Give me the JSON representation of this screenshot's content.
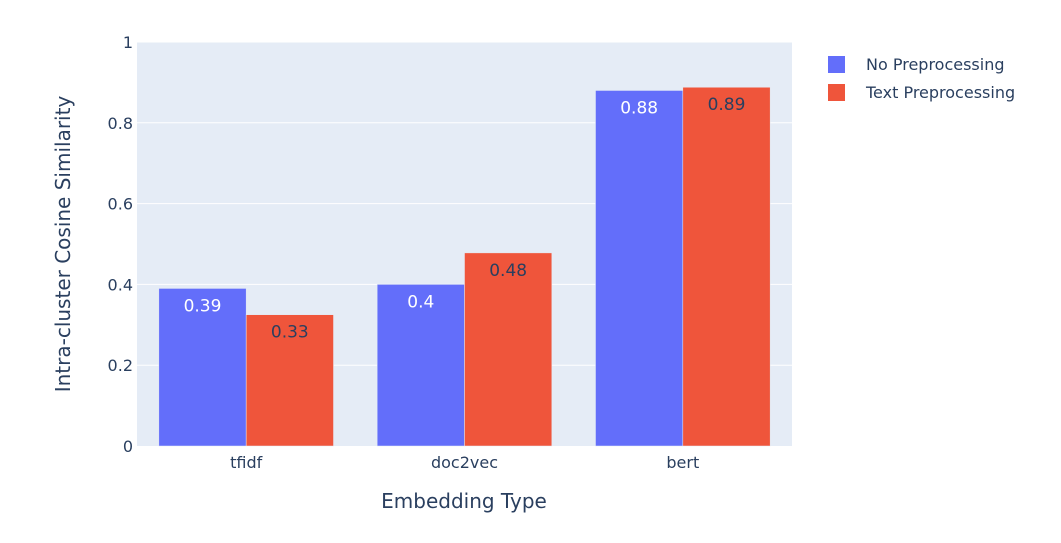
{
  "chart_data": {
    "type": "bar",
    "title": "",
    "xlabel": "Embedding Type",
    "ylabel": "Intra-cluster Cosine Similarity",
    "categories": [
      "tfidf",
      "doc2vec",
      "bert"
    ],
    "ylim": [
      0,
      1
    ],
    "yticks": [
      0,
      0.2,
      0.4,
      0.6,
      0.8,
      1
    ],
    "ytick_labels": [
      "0",
      "0.2",
      "0.4",
      "0.6",
      "0.8",
      "1"
    ],
    "grid": true,
    "legend_position": "top-right",
    "series": [
      {
        "name": "No Preprocessing",
        "color": "#636efa",
        "label_color": "#ffffff",
        "values": [
          0.39,
          0.4,
          0.88
        ],
        "labels": [
          "0.39",
          "0.4",
          "0.88"
        ]
      },
      {
        "name": "Text Preprocessing",
        "color": "#ef553b",
        "label_color": "#2a3f5f",
        "values": [
          0.325,
          0.478,
          0.888
        ],
        "labels": [
          "0.33",
          "0.48",
          "0.89"
        ]
      }
    ],
    "plot_background": "#e5ecf6",
    "gridline_color": "#ffffff",
    "text_color": "#2a3f5f"
  }
}
